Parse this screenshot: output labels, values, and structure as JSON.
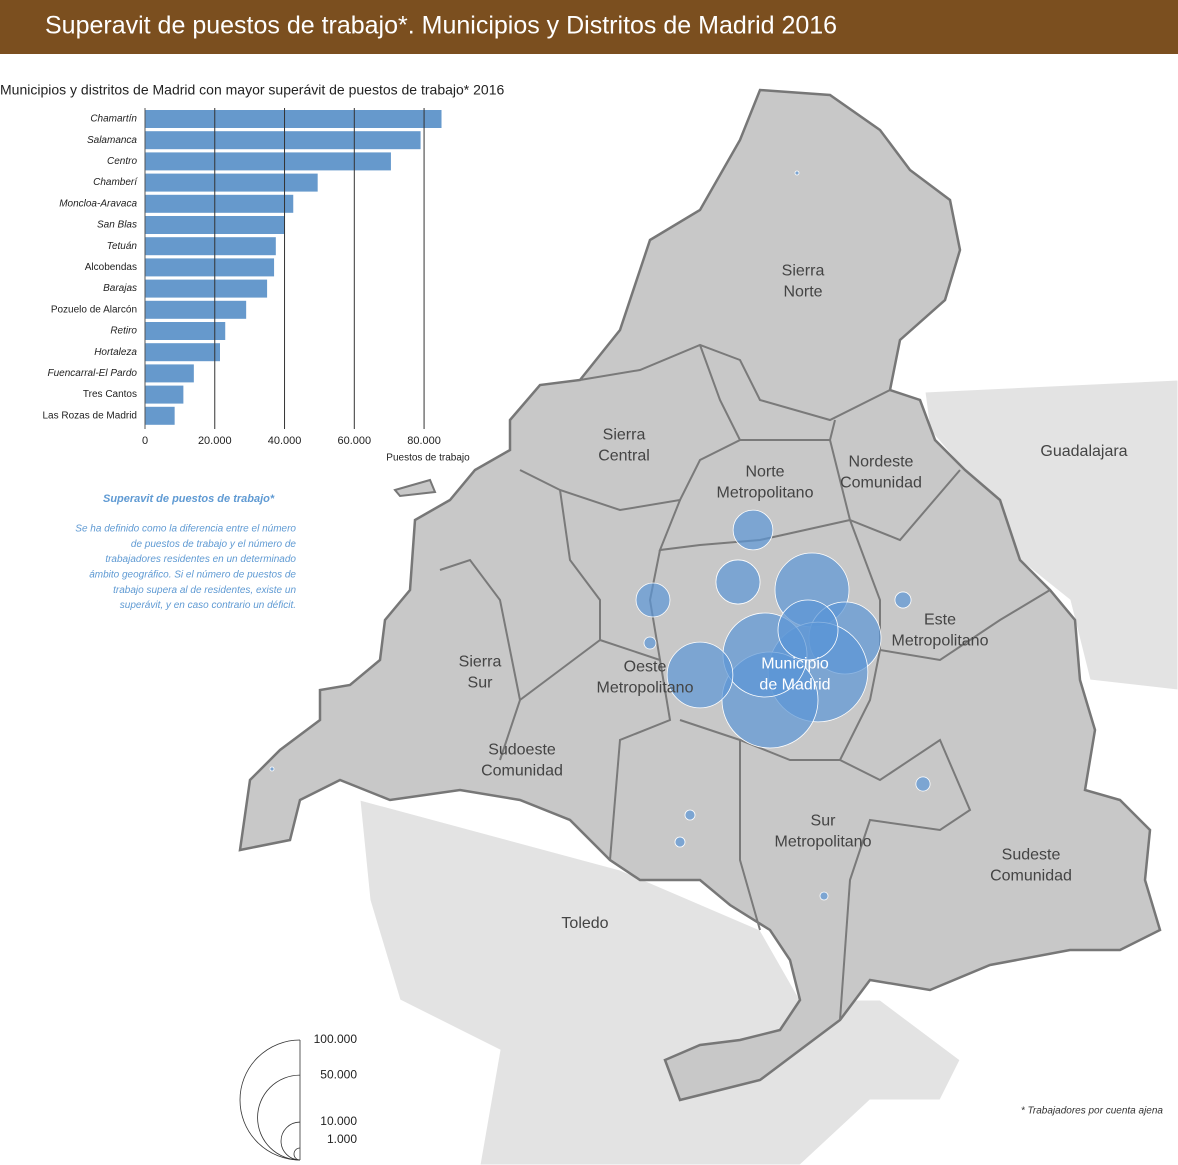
{
  "header": {
    "title": "Superavit de puestos de trabajo*. Municipios y Distritos de Madrid 2016"
  },
  "chart_data": {
    "type": "bar",
    "orientation": "horizontal",
    "title": "Municipios y distritos de Madrid con mayor superávit de puestos de trabajo* 2016",
    "categories": [
      "Chamartín",
      "Salamanca",
      "Centro",
      "Chamberí",
      "Moncloa-Aravaca",
      "San Blas",
      "Tetuán",
      "Alcobendas",
      "Barajas",
      "Pozuelo de Alarcón",
      "Retiro",
      "Hortaleza",
      "Fuencarral-El Pardo",
      "Tres Cantos",
      "Las Rozas de Madrid"
    ],
    "values": [
      85000,
      79000,
      70500,
      49500,
      42500,
      40000,
      37500,
      37000,
      35000,
      29000,
      23000,
      21500,
      14000,
      11000,
      8500
    ],
    "color": "#6699cc",
    "xlim": [
      0,
      86000
    ],
    "xticks": [
      0,
      {
        "value": 20000,
        "label": "20.000"
      },
      {
        "value": 40000,
        "label": "40.000"
      },
      {
        "value": 60000,
        "label": "60.000"
      },
      {
        "value": 80000,
        "label": "80.000"
      }
    ],
    "xlabel": "Puestos de trabajo",
    "grid": true
  },
  "note": {
    "title": "Superavit de puestos de trabajo*",
    "lines": [
      "Se ha definido como la diferencia entre el número",
      "de puestos de trabajo y el número de",
      "trabajadores residentes  en un determinado",
      "ámbito geográfico. Si el número de puestos de",
      "trabajo supera al de residentes, existe un",
      "superávit, y en caso contrario un déficit."
    ]
  },
  "map": {
    "regions": [
      [
        "Sierra",
        "Norte"
      ],
      [
        "Sierra",
        "Central"
      ],
      [
        "Norte",
        "Metropolitano"
      ],
      [
        "Nordeste",
        "Comunidad"
      ],
      [
        "Guadalajara"
      ],
      [
        "Este",
        "Metropolitano"
      ],
      [
        "Oeste",
        "Metropolitano"
      ],
      [
        "Municipio",
        "de Madrid"
      ],
      [
        "Sierra",
        "Sur"
      ],
      [
        "Sudoeste",
        "Comunidad"
      ],
      [
        "Sur",
        "Metropolitano"
      ],
      [
        "Sudeste",
        "Comunidad"
      ],
      [
        "Toledo"
      ]
    ],
    "bubbles": [
      38000,
      36000,
      69000,
      64000,
      49000,
      25000,
      30000,
      13500,
      11000,
      8000,
      1000,
      1800,
      1400,
      700,
      700,
      450,
      110,
      110
    ],
    "legend": [
      {
        "value": 100000,
        "label": "100.000"
      },
      {
        "value": 50000,
        "label": "50.000"
      },
      {
        "value": 10000,
        "label": "10.000"
      },
      {
        "value": 1000,
        "label": "1.000"
      }
    ]
  },
  "footnote": "* Trabajadores por cuenta ajena"
}
